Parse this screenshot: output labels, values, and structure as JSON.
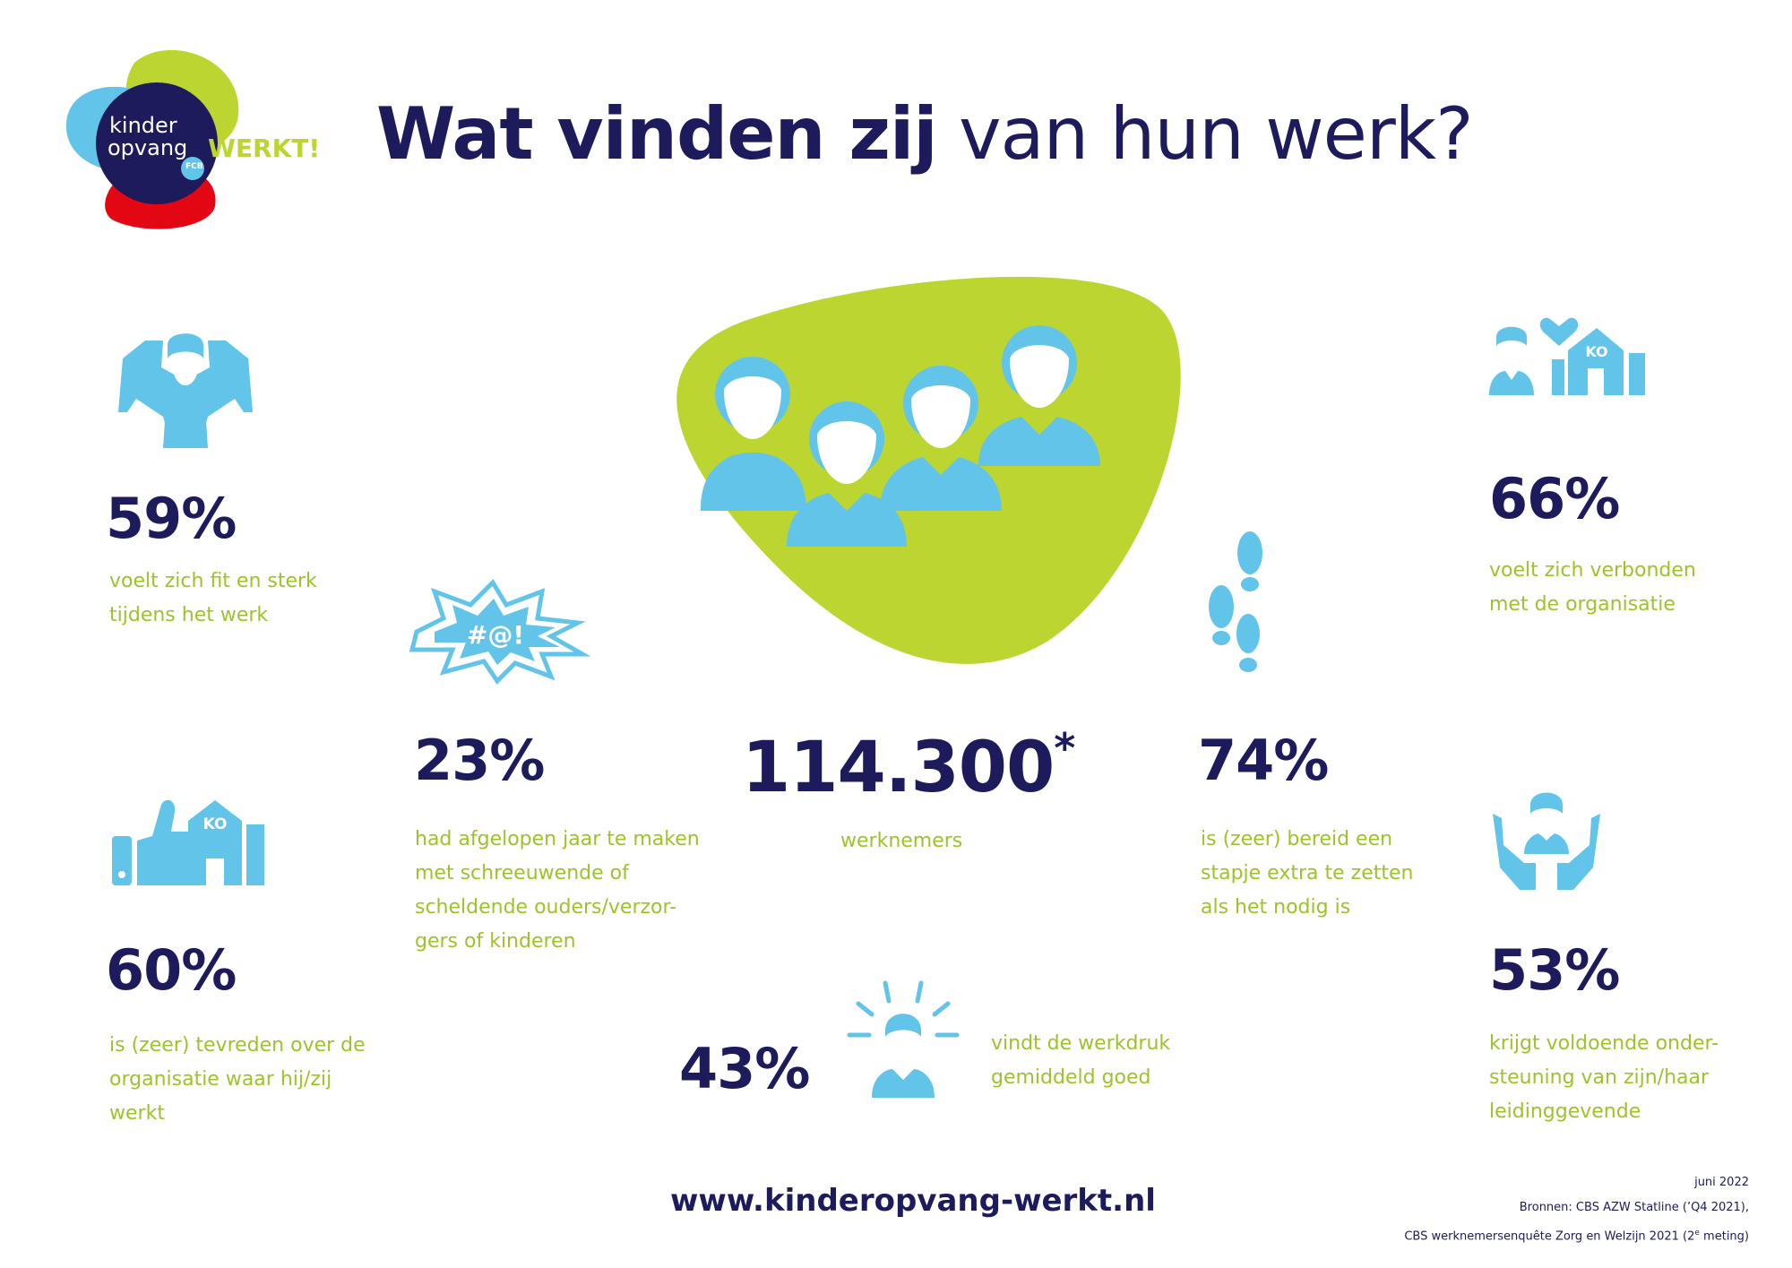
{
  "logo": {
    "line1": "kinder",
    "line2": "opvang",
    "badge": "FCB",
    "werkt": "WERKT!"
  },
  "title": {
    "bold": "Wat vinden zij",
    "light": " van hun werk?"
  },
  "colors": {
    "navy": "#1d1b5c",
    "green": "#bdd531",
    "lightblue": "#62c4e8",
    "red": "#e30613"
  },
  "center": {
    "value": "114.300",
    "asterisk": "*",
    "label": "werknemers",
    "icon": "group-of-people-icon"
  },
  "stats": {
    "fit": {
      "value": "59%",
      "text": "voelt zich fit en sterk\ntijdens het werk",
      "icon": "strong-person-icon"
    },
    "screaming": {
      "value": "23%",
      "text": "had afgelopen jaar te maken\nmet schreeuwende of\nscheldende ouders/verzor-\ngers of kinderen",
      "icon": "cursing-speech-icon",
      "symbols": "#@!"
    },
    "satisfied": {
      "value": "60%",
      "text": "is (zeer) tevreden over de\norganisatie waar hij/zij\nwerkt",
      "icon": "thumbs-up-building-icon",
      "badge": "KO"
    },
    "connected": {
      "value": "66%",
      "text": "voelt zich verbonden\nmet de organisatie",
      "icon": "person-heart-building-icon",
      "badge": "KO"
    },
    "extra_step": {
      "value": "74%",
      "text": "is (zeer) bereid een\nstapje extra te zetten\nals het nodig is",
      "icon": "footsteps-icon"
    },
    "workload": {
      "value": "43%",
      "text": "vindt de werkdruk\ngemiddeld goed",
      "icon": "radiating-person-icon"
    },
    "support": {
      "value": "53%",
      "text": "krijgt voldoende onder-\nsteuning van zijn/haar\nleidinggevende",
      "icon": "supporting-hands-icon"
    }
  },
  "footer": {
    "url": "www.kinderopvang-werkt.nl",
    "date": "juni 2022",
    "source1": "Bronnen: CBS AZW Statline (’Q4 2021),",
    "source2_main": "CBS werknemersenquête Zorg en Welzijn 2021 (2",
    "source2_sup": "e",
    "source2_end": " meting)"
  }
}
